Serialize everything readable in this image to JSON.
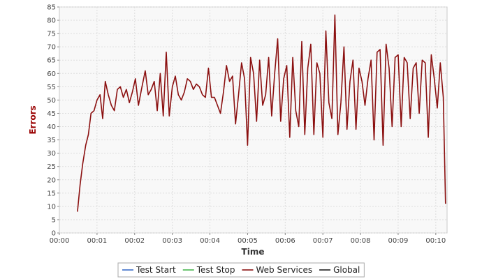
{
  "chart_data": {
    "type": "line",
    "title": "",
    "xlabel": "Time",
    "ylabel": "Errors",
    "ylim": [
      0,
      85
    ],
    "ytick_step": 5,
    "xlim_minutes": [
      0,
      10.3
    ],
    "xticks": [
      "00:00",
      "00:01",
      "00:02",
      "00:03",
      "00:04",
      "00:05",
      "00:06",
      "00:07",
      "00:08",
      "00:09",
      "00:10"
    ],
    "grid": true,
    "legend_placement": "bottom-center",
    "colors": {
      "plot_background": "#f8f8f8",
      "grid": "#dddddd",
      "axis_title_errors": "#990000",
      "axis_title_time": "#333333"
    },
    "legend": [
      {
        "label": "Test Start",
        "color": "#3a6cc8"
      },
      {
        "label": "Test Stop",
        "color": "#3cb043"
      },
      {
        "label": "Web Services",
        "color": "#8b1010"
      },
      {
        "label": "Global",
        "color": "#111111"
      }
    ],
    "series": [
      {
        "name": "Web Services",
        "color": "#8b1010",
        "points": [
          [
            0.48,
            8
          ],
          [
            0.55,
            18
          ],
          [
            0.62,
            26
          ],
          [
            0.7,
            33
          ],
          [
            0.77,
            37
          ],
          [
            0.84,
            45
          ],
          [
            0.92,
            46
          ],
          [
            1.0,
            50
          ],
          [
            1.08,
            52
          ],
          [
            1.15,
            43
          ],
          [
            1.22,
            57
          ],
          [
            1.3,
            52
          ],
          [
            1.38,
            48
          ],
          [
            1.46,
            46
          ],
          [
            1.54,
            54
          ],
          [
            1.62,
            55
          ],
          [
            1.7,
            51
          ],
          [
            1.78,
            54
          ],
          [
            1.86,
            49
          ],
          [
            1.94,
            53
          ],
          [
            2.02,
            58
          ],
          [
            2.1,
            48
          ],
          [
            2.18,
            54
          ],
          [
            2.28,
            61
          ],
          [
            2.36,
            52
          ],
          [
            2.44,
            54
          ],
          [
            2.52,
            57
          ],
          [
            2.6,
            46
          ],
          [
            2.68,
            60
          ],
          [
            2.76,
            44
          ],
          [
            2.84,
            68
          ],
          [
            2.92,
            44
          ],
          [
            3.0,
            55
          ],
          [
            3.08,
            59
          ],
          [
            3.16,
            52
          ],
          [
            3.24,
            50
          ],
          [
            3.32,
            53
          ],
          [
            3.4,
            58
          ],
          [
            3.48,
            57
          ],
          [
            3.56,
            54
          ],
          [
            3.64,
            56
          ],
          [
            3.72,
            55
          ],
          [
            3.8,
            52
          ],
          [
            3.88,
            51
          ],
          [
            3.96,
            62
          ],
          [
            4.04,
            51
          ],
          [
            4.12,
            51
          ],
          [
            4.2,
            48
          ],
          [
            4.28,
            45
          ],
          [
            4.36,
            53
          ],
          [
            4.44,
            63
          ],
          [
            4.52,
            57
          ],
          [
            4.6,
            59
          ],
          [
            4.68,
            41
          ],
          [
            4.76,
            52
          ],
          [
            4.84,
            64
          ],
          [
            4.92,
            58
          ],
          [
            5.0,
            33
          ],
          [
            5.08,
            66
          ],
          [
            5.16,
            60
          ],
          [
            5.24,
            42
          ],
          [
            5.32,
            65
          ],
          [
            5.4,
            48
          ],
          [
            5.48,
            52
          ],
          [
            5.56,
            66
          ],
          [
            5.64,
            44
          ],
          [
            5.72,
            60
          ],
          [
            5.8,
            73
          ],
          [
            5.88,
            42
          ],
          [
            5.96,
            58
          ],
          [
            6.04,
            63
          ],
          [
            6.12,
            36
          ],
          [
            6.2,
            66
          ],
          [
            6.28,
            46
          ],
          [
            6.36,
            40
          ],
          [
            6.44,
            72
          ],
          [
            6.52,
            37
          ],
          [
            6.6,
            62
          ],
          [
            6.68,
            71
          ],
          [
            6.76,
            37
          ],
          [
            6.84,
            64
          ],
          [
            6.92,
            60
          ],
          [
            7.0,
            36
          ],
          [
            7.08,
            76
          ],
          [
            7.16,
            49
          ],
          [
            7.24,
            43
          ],
          [
            7.32,
            82
          ],
          [
            7.4,
            37
          ],
          [
            7.48,
            49
          ],
          [
            7.56,
            70
          ],
          [
            7.64,
            39
          ],
          [
            7.72,
            57
          ],
          [
            7.8,
            65
          ],
          [
            7.88,
            39
          ],
          [
            7.96,
            62
          ],
          [
            8.04,
            57
          ],
          [
            8.12,
            48
          ],
          [
            8.2,
            58
          ],
          [
            8.28,
            65
          ],
          [
            8.36,
            35
          ],
          [
            8.44,
            68
          ],
          [
            8.52,
            69
          ],
          [
            8.6,
            33
          ],
          [
            8.68,
            71
          ],
          [
            8.76,
            62
          ],
          [
            8.84,
            40
          ],
          [
            8.92,
            66
          ],
          [
            9.0,
            67
          ],
          [
            9.08,
            40
          ],
          [
            9.16,
            66
          ],
          [
            9.24,
            64
          ],
          [
            9.32,
            43
          ],
          [
            9.4,
            62
          ],
          [
            9.48,
            64
          ],
          [
            9.56,
            45
          ],
          [
            9.64,
            65
          ],
          [
            9.72,
            64
          ],
          [
            9.8,
            36
          ],
          [
            9.88,
            67
          ],
          [
            9.96,
            58
          ],
          [
            10.04,
            47
          ],
          [
            10.12,
            64
          ],
          [
            10.2,
            51
          ],
          [
            10.26,
            11
          ]
        ]
      }
    ]
  }
}
